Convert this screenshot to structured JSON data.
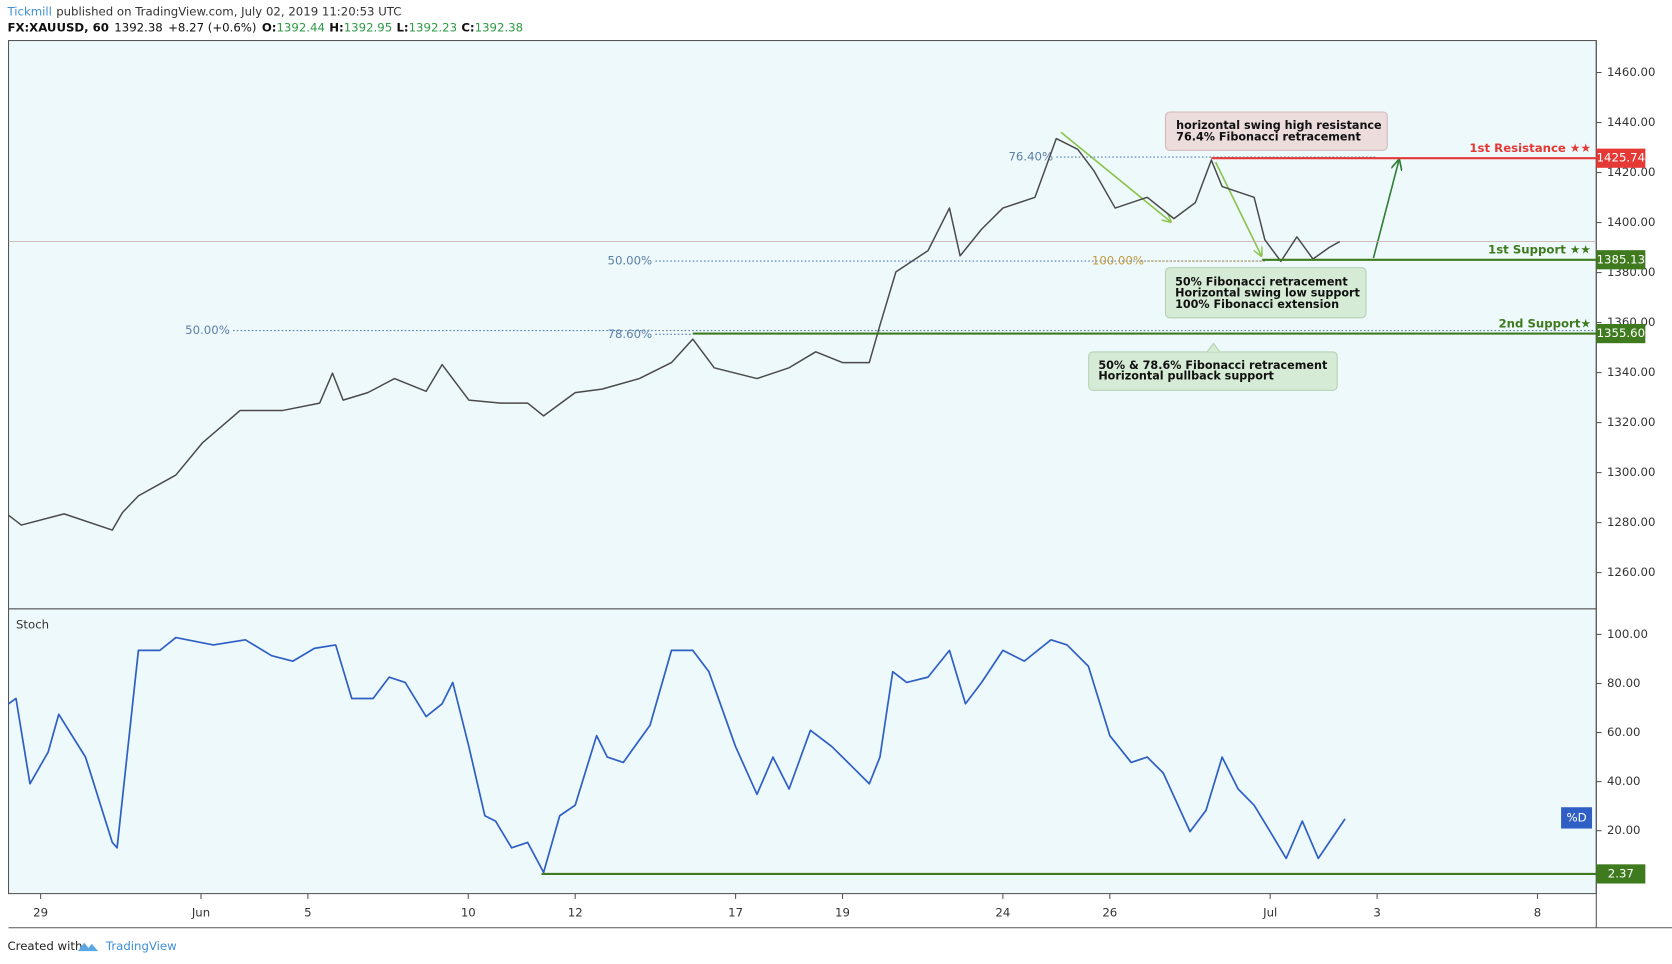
{
  "header": {
    "author": "Tickmill",
    "published": "published on TradingView.com, July 02, 2019 11:20:53 UTC",
    "symbol": "FX:XAUUSD, 60",
    "last": "1392.38",
    "change": "+8.27 (+0.6%)",
    "ohlc": [
      [
        "O:",
        "1392.44"
      ],
      [
        "H:",
        "1392.95"
      ],
      [
        "L:",
        "1392.23"
      ],
      [
        "C:",
        "1392.38"
      ]
    ]
  },
  "footer": {
    "created": "Created with",
    "brand": "TradingView"
  },
  "chart_data": [
    {
      "type": "line",
      "xlim": [
        -0.6,
        29.1
      ],
      "ylim": [
        1245.5,
        1472.8
      ],
      "yticks": [
        {
          "value": 1260,
          "label": "1260.00"
        },
        {
          "value": 1280,
          "label": "1280.00"
        },
        {
          "value": 1300,
          "label": "1300.00"
        },
        {
          "value": 1320,
          "label": "1320.00"
        },
        {
          "value": 1340,
          "label": "1340.00"
        },
        {
          "value": 1360,
          "label": "1360.00"
        },
        {
          "value": 1380,
          "label": "1380.00"
        },
        {
          "value": 1400,
          "label": "1400.00"
        },
        {
          "value": 1420,
          "label": "1420.00"
        },
        {
          "value": 1440,
          "label": "1440.00"
        },
        {
          "value": 1460,
          "label": "1460.00"
        }
      ],
      "grid": false,
      "last_price": 1392.38,
      "series": [
        {
          "color": "#4a4a4a",
          "x": [
            -0.6,
            -0.36,
            0.44,
            1.34,
            1.53,
            1.83,
            2.53,
            3.03,
            3.73,
            4.52,
            5.22,
            5.46,
            5.66,
            6.12,
            6.62,
            7.21,
            7.51,
            8.01,
            8.61,
            9.11,
            9.41,
            10.0,
            10.5,
            11.2,
            11.8,
            12.2,
            12.6,
            13.4,
            14.0,
            14.5,
            15.0,
            15.5,
            15.7,
            16.0,
            16.6,
            17.0,
            17.2,
            17.6,
            18.0,
            18.6,
            19.0,
            19.4,
            19.7,
            20.1,
            20.7,
            21.2,
            21.6,
            21.9,
            22.1,
            22.7,
            22.9,
            23.2,
            23.5,
            23.8,
            24.1,
            24.3
          ],
          "values": [
            1283,
            1279,
            1283.5,
            1277,
            1284,
            1290.7,
            1299,
            1312,
            1324.8,
            1324.8,
            1327.8,
            1339.8,
            1329,
            1332,
            1337.6,
            1332.5,
            1343.2,
            1329,
            1327.8,
            1327.8,
            1322.7,
            1332,
            1333.4,
            1337.6,
            1344,
            1353.4,
            1341.9,
            1337.6,
            1341.9,
            1348.3,
            1344,
            1344,
            1358.9,
            1380.3,
            1388.8,
            1405.8,
            1386.7,
            1397.3,
            1405.8,
            1410.1,
            1433.6,
            1429.3,
            1420.8,
            1405.8,
            1410.1,
            1401.6,
            1408,
            1425,
            1414.4,
            1410.1,
            1393.1,
            1384.5,
            1394.3,
            1385.4,
            1390,
            1392.4
          ]
        }
      ],
      "levels": [
        {
          "name": "1st Resistance ★★",
          "value": 1425.74,
          "value_label": "1425.74",
          "x0": 21.9,
          "color": "#e53935"
        },
        {
          "name": "1st Support ★★",
          "value": 1385.13,
          "value_label": "1385.13",
          "x0": 22.85,
          "color": "#3f7a1e"
        },
        {
          "name": "2nd Support★",
          "value": 1355.6,
          "value_label": "1355.60",
          "x0": 12.2,
          "color": "#3f7a1e"
        }
      ],
      "fibs": [
        {
          "label": "76.40%",
          "value": 1426.2,
          "x0": 19.0,
          "x1": 25.0,
          "color": "#5b7fa8"
        },
        {
          "label": "50.00%",
          "value": 1384.6,
          "x0": 11.5,
          "x1": 22.9,
          "color": "#5b7fa8"
        },
        {
          "label": "100.00%",
          "value": 1384.6,
          "x0": 20.7,
          "x1": 22.9,
          "color": "#c29a3a"
        },
        {
          "label": "50.00%",
          "value": 1356.8,
          "x0": 3.6,
          "x1": 29.1,
          "color": "#5b7fa8"
        },
        {
          "label": "78.60%",
          "value": 1355.3,
          "x0": 11.5,
          "x1": 12.2,
          "color": "#5b7fa8"
        }
      ],
      "annotations": [
        {
          "lines": [
            "horizontal swing high resistance",
            "76.4% Fibonacci retracement"
          ]
        },
        {
          "lines": [
            "50% Fibonacci retracement",
            "Horizontal swing low support",
            "100% Fibonacci extension"
          ]
        },
        {
          "lines": [
            "50% & 78.6% Fibonacci retracement",
            "Horizontal pullback support"
          ]
        }
      ]
    },
    {
      "type": "line",
      "title": "Stoch",
      "xlim": [
        -0.6,
        29.1
      ],
      "ylim": [
        -5.65,
        110.4
      ],
      "yticks": [
        {
          "value": 20,
          "label": "20.00"
        },
        {
          "value": 40,
          "label": "40.00"
        },
        {
          "value": 60,
          "label": "60.00"
        },
        {
          "value": 80,
          "label": "80.00"
        },
        {
          "value": 100,
          "label": "100.00"
        }
      ],
      "xticks": [
        {
          "value": 0,
          "label": "29"
        },
        {
          "value": 3,
          "label": "Jun"
        },
        {
          "value": 5,
          "label": "5"
        },
        {
          "value": 8,
          "label": "10"
        },
        {
          "value": 10,
          "label": "12"
        },
        {
          "value": 13,
          "label": "17"
        },
        {
          "value": 15,
          "label": "19"
        },
        {
          "value": 18,
          "label": "24"
        },
        {
          "value": 20,
          "label": "26"
        },
        {
          "value": 23,
          "label": "Jul"
        },
        {
          "value": 25,
          "label": "3"
        },
        {
          "value": 28,
          "label": "8"
        }
      ],
      "grid": false,
      "legend": "right",
      "series": [
        {
          "name": "%D",
          "color": "#2f5fc4",
          "x": [
            -0.6,
            -0.46,
            -0.2,
            0.14,
            0.34,
            0.84,
            1.34,
            1.43,
            1.83,
            2.23,
            2.53,
            3.23,
            3.83,
            4.32,
            4.72,
            5.12,
            5.52,
            5.82,
            6.22,
            6.52,
            6.82,
            7.21,
            7.51,
            7.71,
            8.01,
            8.31,
            8.51,
            8.81,
            9.11,
            9.41,
            9.71,
            10.0,
            10.4,
            10.6,
            10.9,
            11.4,
            11.8,
            12.2,
            12.5,
            13.0,
            13.4,
            13.7,
            14.0,
            14.4,
            14.8,
            15.2,
            15.5,
            15.7,
            15.94,
            16.2,
            16.6,
            17.0,
            17.3,
            17.6,
            18.0,
            18.4,
            18.9,
            19.2,
            19.6,
            20.0,
            20.4,
            20.7,
            21.0,
            21.5,
            21.8,
            22.1,
            22.4,
            22.7,
            23.0,
            23.3,
            23.6,
            23.9,
            24.4
          ],
          "values": [
            71.7,
            73.9,
            39.1,
            52,
            67.4,
            50,
            15.2,
            13,
            93.5,
            93.5,
            98.7,
            95.7,
            97.8,
            91.3,
            89.1,
            94.3,
            95.7,
            73.9,
            73.9,
            82.6,
            80.4,
            66.5,
            71.7,
            80.4,
            54.3,
            26.1,
            23.9,
            13,
            15.2,
            3,
            26.1,
            30.4,
            58.7,
            50,
            47.8,
            63,
            93.5,
            93.5,
            84.8,
            54.3,
            34.8,
            50,
            37,
            60.9,
            54.3,
            45.7,
            39.1,
            50,
            84.8,
            80.4,
            82.6,
            93.5,
            71.7,
            80.4,
            93.5,
            89.1,
            97.8,
            95.7,
            87,
            58.7,
            47.8,
            50,
            43.5,
            19.6,
            28.3,
            50,
            37,
            30.4,
            19.6,
            8.7,
            23.9,
            8.7,
            24.8
          ]
        }
      ],
      "levels": [
        {
          "value": 2.37,
          "value_label": "2.37",
          "x0": 9.37,
          "color": "#3f7a1e"
        }
      ]
    }
  ]
}
